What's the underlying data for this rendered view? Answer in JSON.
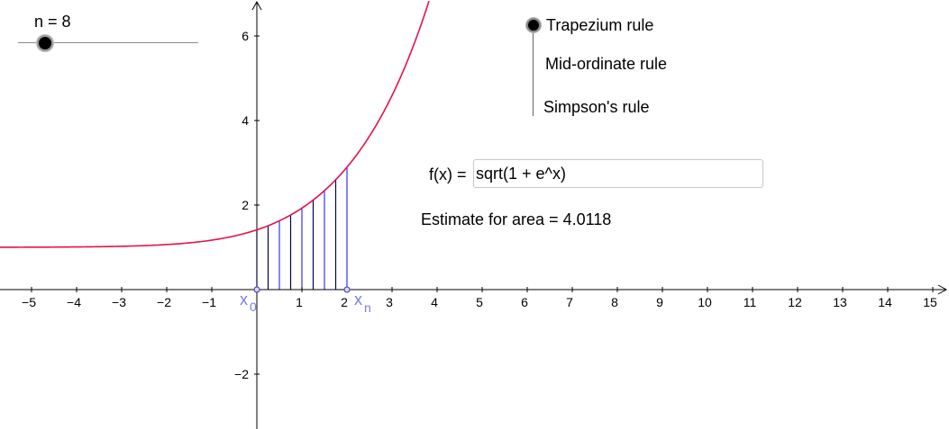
{
  "slider": {
    "label": "n = 8",
    "value": 8
  },
  "methods": {
    "options": [
      "Trapezium rule",
      "Mid-ordinate rule",
      "Simpson's rule"
    ],
    "selected": "Trapezium rule"
  },
  "function": {
    "label": "f(x) =",
    "expression": "sqrt(1 + e^x)"
  },
  "estimate": {
    "text": "Estimate for area = 4.0118"
  },
  "points": {
    "start_label": "x",
    "start_sub": "0",
    "end_label": "x",
    "end_sub": "n"
  },
  "colors": {
    "curve": "#e8104a",
    "strips": "#3333ff",
    "strip_dark": "#000066",
    "points": "#7b7be8"
  },
  "chart_data": {
    "type": "line",
    "x_ticks": [
      -5,
      -4,
      -3,
      -2,
      -1,
      1,
      2,
      3,
      4,
      5,
      6,
      7,
      8,
      9,
      10,
      11,
      12,
      13,
      14,
      15
    ],
    "y_ticks": [
      -2,
      2,
      4,
      6
    ],
    "x_range": [
      -5.7,
      15.3
    ],
    "y_range": [
      -3.2,
      6.8
    ],
    "integration": {
      "a": 0,
      "b": 2,
      "n": 8
    }
  }
}
